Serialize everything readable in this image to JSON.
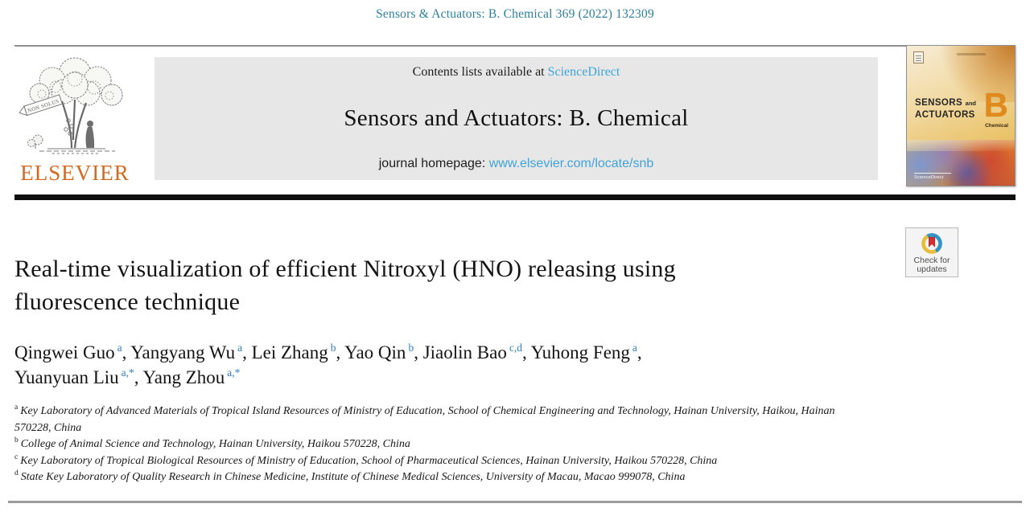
{
  "header": {
    "citation": "Sensors & Actuators: B. Chemical 369 (2022) 132309"
  },
  "publisher": {
    "wordmark": "ELSEVIER",
    "motto": "NON SOLUS"
  },
  "banner": {
    "contents_prefix": "Contents lists available at",
    "sciencedirect": "ScienceDirect",
    "journal_title": "Sensors and Actuators: B. Chemical",
    "homepage_prefix": "journal homepage:",
    "homepage_url": "www.elsevier.com/locate/snb"
  },
  "cover": {
    "title_word1": "SENSORS",
    "title_and": "and",
    "title_word2": "ACTUATORS",
    "letter": "B",
    "subtitle": "Chemical",
    "footer_brand": "ScienceDirect"
  },
  "badge": {
    "line1": "Check for",
    "line2": "updates"
  },
  "article": {
    "title_lines": [
      {
        "text": "Real-time visualization of efficient Nitroxyl (HNO) releasing using"
      },
      {
        "text": "fluorescence technique"
      }
    ],
    "authors": [
      {
        "name": "Qingwei Guo",
        "sup": "a",
        "sep": ", "
      },
      {
        "name": "Yangyang Wu",
        "sup": "a",
        "sep": ", "
      },
      {
        "name": "Lei Zhang",
        "sup": "b",
        "sep": ", "
      },
      {
        "name": "Yao Qin",
        "sup": "b",
        "sep": ", "
      },
      {
        "name": "Jiaolin Bao",
        "sup": "c,d",
        "sep": ", "
      },
      {
        "name": "Yuhong Feng",
        "sup": "a",
        "sep": ",",
        "_br": true
      },
      {
        "name": "Yuanyuan Liu",
        "sup": "a,*",
        "sep": ", "
      },
      {
        "name": "Yang Zhou",
        "sup": "a,*",
        "sep": ""
      }
    ],
    "affiliations": [
      {
        "sup": "a",
        "text": "Key Laboratory of Advanced Materials of Tropical Island Resources of Ministry of Education, School of Chemical Engineering and Technology, Hainan University, Haikou, Hainan 570228, China"
      },
      {
        "sup": "b",
        "text": "College of Animal Science and Technology, Hainan University, Haikou 570228, China"
      },
      {
        "sup": "c",
        "text": "Key Laboratory of Tropical Biological Resources of Ministry of Education, School of Pharmaceutical Sciences, Hainan University, Haikou 570228, China"
      },
      {
        "sup": "d",
        "text": "State Key Laboratory of Quality Research in Chinese Medicine, Institute of Chinese Medical Sciences, University of Macau, Macao 999078, China"
      }
    ]
  },
  "colors": {
    "citation_teal": "#2d7f9d",
    "link_blue": "#3fa3da",
    "superscript_blue": "#2e7fc2",
    "elsevier_orange": "#d4691e",
    "banner_gray": "#e7e7e7",
    "cover_b_orange": "#e0891c",
    "badge_yellow": "#e7bd3a",
    "badge_blue": "#3193c6",
    "badge_red": "#cf2e32"
  }
}
